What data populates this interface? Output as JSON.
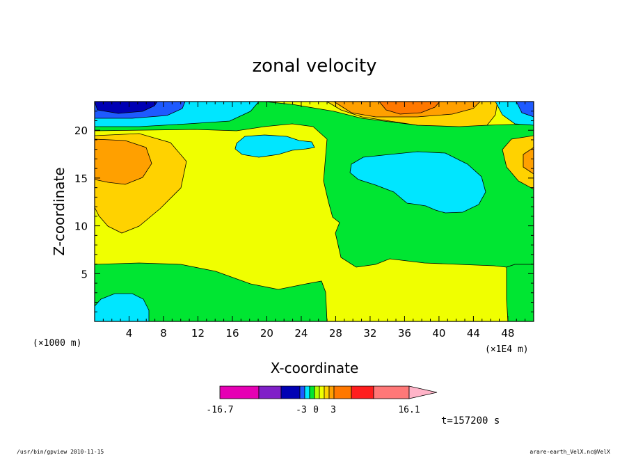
{
  "chart_data": {
    "type": "contour",
    "title": "zonal velocity",
    "xlabel": "X-coordinate",
    "ylabel": "Z-coordinate",
    "x_unit_left": "(×1000 m)",
    "x_unit_right": "(×1E4 m)",
    "xlim": [
      0,
      51
    ],
    "ylim": [
      0,
      23
    ],
    "x_ticks": [
      4,
      8,
      12,
      16,
      20,
      24,
      28,
      32,
      36,
      40,
      44,
      48
    ],
    "y_ticks": [
      5,
      10,
      15,
      20
    ],
    "colorbar": {
      "min_label": "-16.7",
      "labels": [
        "-3",
        "0",
        "3"
      ],
      "max_label": "16.1",
      "colors": [
        "#e600b4",
        "#8020c8",
        "#0000b4",
        "#1e5aff",
        "#00e6ff",
        "#00e632",
        "#b4ff00",
        "#f0ff00",
        "#ffd200",
        "#ffa000",
        "#ff7800",
        "#ff1e1e",
        "#ff7878",
        "#ffb4c8"
      ]
    },
    "time_label": "t=157200 s",
    "footer_left": "/usr/bin/gpview   2010-11-15",
    "footer_right": "arare-earth_VelX.nc@VelX"
  }
}
